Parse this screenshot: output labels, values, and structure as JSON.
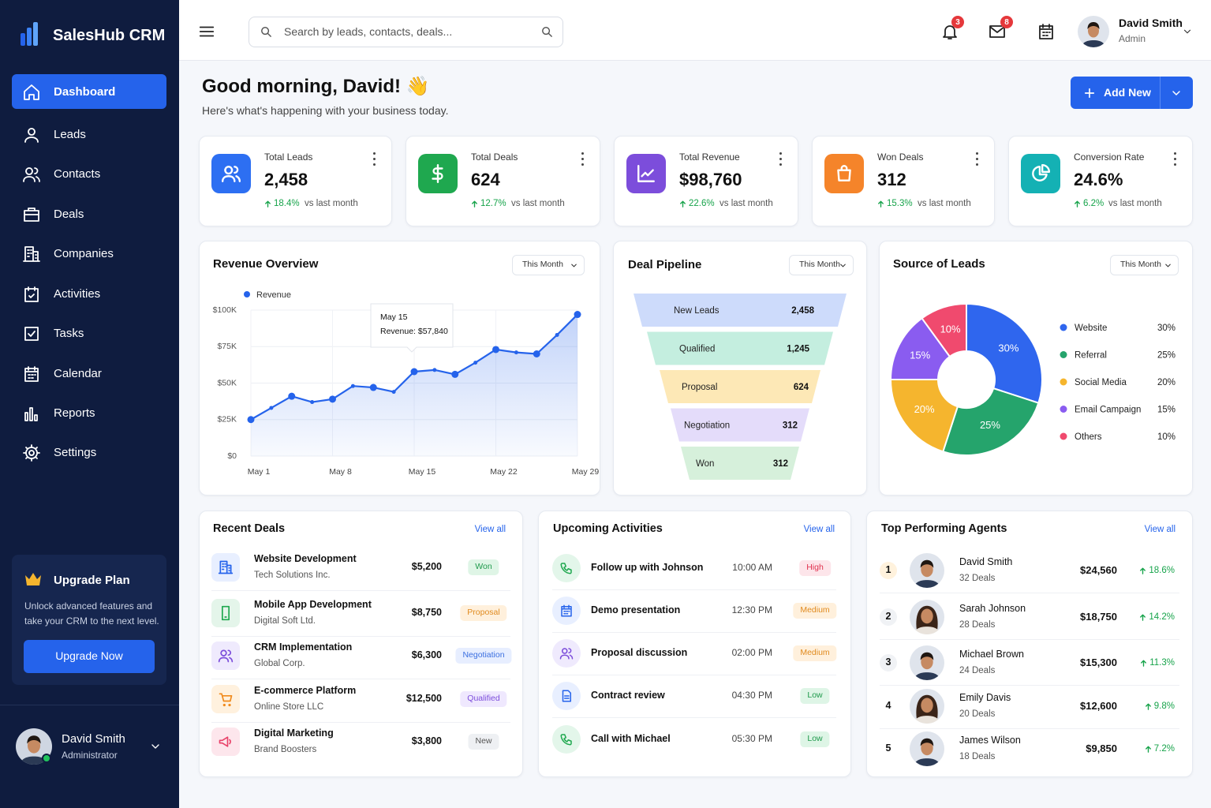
{
  "brand": {
    "name": "SalesHub CRM"
  },
  "nav": [
    "Dashboard",
    "Leads",
    "Contacts",
    "Deals",
    "Companies",
    "Activities",
    "Tasks",
    "Calendar",
    "Reports",
    "Settings"
  ],
  "upgrade": {
    "title": "Upgrade Plan",
    "text": "Unlock advanced features and take your CRM to the next level.",
    "button": "Upgrade Now"
  },
  "sidebar_user": {
    "name": "David Smith",
    "role": "Administrator"
  },
  "topbar": {
    "search_placeholder": "Search by leads, contacts, deals...",
    "notifications": "3",
    "messages": "8",
    "user_name": "David Smith",
    "user_role": "Admin"
  },
  "header": {
    "title": "Good morning, David! 👋",
    "subtitle": "Here's what's happening with your business today.",
    "button": "Add New"
  },
  "stats": [
    {
      "label": "Total Leads",
      "value": "2,458",
      "change": "18.4%",
      "note": "vs last month"
    },
    {
      "label": "Total Deals",
      "value": "624",
      "change": "12.7%",
      "note": "vs last month"
    },
    {
      "label": "Total Revenue",
      "value": "$98,760",
      "change": "22.6%",
      "note": "vs last month"
    },
    {
      "label": "Won Deals",
      "value": "312",
      "change": "15.3%",
      "note": "vs last month"
    },
    {
      "label": "Conversion Rate",
      "value": "24.6%",
      "change": "6.2%",
      "note": "vs last month"
    }
  ],
  "chart_data": [
    {
      "type": "line",
      "title": "Revenue Overview",
      "filter": "This Month",
      "categories": [
        "May 1",
        null,
        null,
        null,
        "May 8",
        null,
        null,
        null,
        "May 15",
        null,
        null,
        null,
        "May 22",
        null,
        null,
        null,
        "May 29"
      ],
      "series": [
        {
          "name": "Revenue",
          "color": "#2563eb",
          "values": [
            25000,
            33000,
            41000,
            37000,
            39000,
            48000,
            47000,
            44000,
            57840,
            59000,
            56000,
            64000,
            73000,
            71000,
            70000,
            83000,
            97000
          ]
        }
      ],
      "ylim": [
        0,
        100000
      ],
      "yticks": [
        {
          "value": 0,
          "label": "$0"
        },
        {
          "value": 25000,
          "label": "$25K"
        },
        {
          "value": 50000,
          "label": "$50K"
        },
        {
          "value": 75000,
          "label": "$75K"
        },
        {
          "value": 100000,
          "label": "$100K"
        }
      ],
      "grid": true,
      "tooltip": {
        "title": "May 15",
        "text": "Revenue: $57,840"
      }
    },
    {
      "type": "funnel",
      "title": "Deal Pipeline",
      "filter": "This Month",
      "categories": [
        "New Leads",
        "Qualified",
        "Proposal",
        "Negotiation",
        "Won"
      ],
      "values": [
        2458,
        1245,
        624,
        312,
        312
      ],
      "value_labels": [
        "2,458",
        "1,245",
        "624",
        "312",
        "312"
      ],
      "colors": [
        "#cddbfb",
        "#c4eedf",
        "#fde8b6",
        "#e4dcfa",
        "#d6f0db"
      ]
    },
    {
      "type": "pie",
      "title": "Source of Leads",
      "filter": "This Month",
      "categories": [
        "Website",
        "Referral",
        "Social Media",
        "Email Campaign",
        "Others"
      ],
      "values": [
        30,
        25,
        20,
        15,
        10
      ],
      "value_labels": [
        "30%",
        "25%",
        "20%",
        "15%",
        "10%"
      ],
      "colors": [
        "#2f66ee",
        "#25a46c",
        "#f5b52e",
        "#8a5cf0",
        "#f04a6e"
      ],
      "donut": true
    }
  ],
  "recent_deals": {
    "title": "Recent Deals",
    "link": "View all",
    "rows": [
      {
        "name": "Website Development",
        "company": "Tech Solutions Inc.",
        "amount": "$5,200",
        "status": "Won"
      },
      {
        "name": "Mobile App Development",
        "company": "Digital Soft Ltd.",
        "amount": "$8,750",
        "status": "Proposal"
      },
      {
        "name": "CRM Implementation",
        "company": "Global Corp.",
        "amount": "$6,300",
        "status": "Negotiation"
      },
      {
        "name": "E-commerce Platform",
        "company": "Online Store LLC",
        "amount": "$12,500",
        "status": "Qualified"
      },
      {
        "name": "Digital Marketing",
        "company": "Brand Boosters",
        "amount": "$3,800",
        "status": "New"
      }
    ]
  },
  "activities": {
    "title": "Upcoming Activities",
    "link": "View all",
    "rows": [
      {
        "name": "Follow up with Johnson",
        "time": "10:00 AM",
        "priority": "High"
      },
      {
        "name": "Demo presentation",
        "time": "12:30 PM",
        "priority": "Medium"
      },
      {
        "name": "Proposal discussion",
        "time": "02:00 PM",
        "priority": "Medium"
      },
      {
        "name": "Contract review",
        "time": "04:30 PM",
        "priority": "Low"
      },
      {
        "name": "Call with Michael",
        "time": "05:30 PM",
        "priority": "Low"
      }
    ]
  },
  "agents": {
    "title": "Top Performing Agents",
    "link": "View all",
    "rows": [
      {
        "rank": "1",
        "name": "David Smith",
        "deals": "32 Deals",
        "amount": "$24,560",
        "change": "18.6%"
      },
      {
        "rank": "2",
        "name": "Sarah Johnson",
        "deals": "28 Deals",
        "amount": "$18,750",
        "change": "14.2%"
      },
      {
        "rank": "3",
        "name": "Michael Brown",
        "deals": "24 Deals",
        "amount": "$15,300",
        "change": "11.3%"
      },
      {
        "rank": "4",
        "name": "Emily Davis",
        "deals": "20 Deals",
        "amount": "$12,600",
        "change": "9.8%"
      },
      {
        "rank": "5",
        "name": "James Wilson",
        "deals": "18 Deals",
        "amount": "$9,850",
        "change": "7.2%"
      }
    ]
  }
}
